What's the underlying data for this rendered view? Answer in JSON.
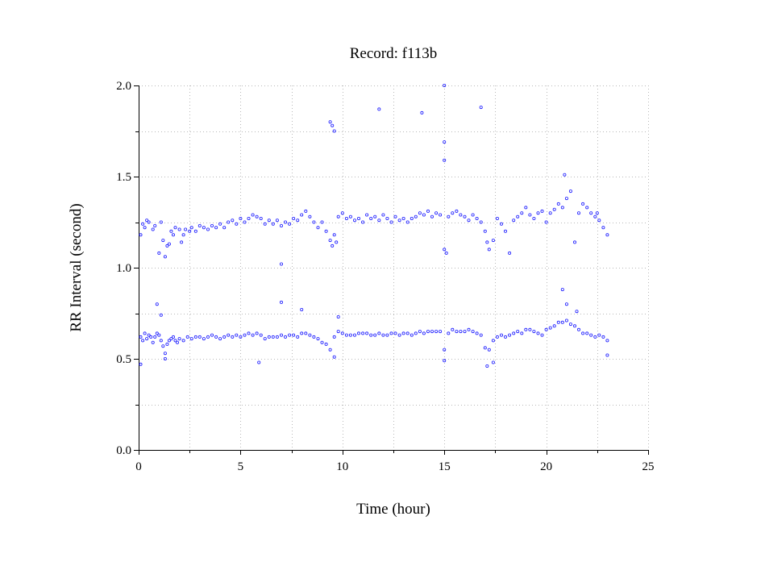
{
  "chart_data": {
    "type": "scatter",
    "title": "Record:  f113b",
    "xlabel": "Time (hour)",
    "ylabel": "RR Interval (second)",
    "xlim": [
      0,
      25
    ],
    "ylim": [
      0,
      2
    ],
    "x_ticks": [
      0,
      5,
      10,
      15,
      20,
      25
    ],
    "y_ticks": [
      0.0,
      0.5,
      1.0,
      1.5,
      2.0
    ],
    "x_tick_labels": [
      "0",
      "5",
      "10",
      "15",
      "20",
      "25"
    ],
    "y_tick_labels": [
      "0.0",
      "0.5",
      "1.0",
      "1.5",
      "2.0"
    ],
    "grid": true,
    "marker_color": "#1a1aff",
    "series": [
      {
        "points": [
          [
            0.1,
            0.62
          ],
          [
            0.2,
            0.6
          ],
          [
            0.3,
            0.64
          ],
          [
            0.4,
            0.61
          ],
          [
            0.5,
            0.63
          ],
          [
            0.6,
            0.62
          ],
          [
            0.7,
            0.59
          ],
          [
            0.8,
            0.62
          ],
          [
            0.9,
            0.64
          ],
          [
            1.0,
            0.63
          ],
          [
            1.1,
            0.6
          ],
          [
            1.2,
            0.57
          ],
          [
            1.3,
            0.53
          ],
          [
            1.4,
            0.58
          ],
          [
            1.5,
            0.6
          ],
          [
            1.6,
            0.61
          ],
          [
            1.7,
            0.62
          ],
          [
            1.8,
            0.6
          ],
          [
            1.9,
            0.59
          ],
          [
            2.0,
            0.61
          ],
          [
            2.2,
            0.6
          ],
          [
            2.4,
            0.62
          ],
          [
            2.6,
            0.61
          ],
          [
            2.8,
            0.62
          ],
          [
            3.0,
            0.62
          ],
          [
            3.2,
            0.61
          ],
          [
            3.4,
            0.62
          ],
          [
            3.6,
            0.63
          ],
          [
            3.8,
            0.62
          ],
          [
            4.0,
            0.61
          ],
          [
            4.2,
            0.62
          ],
          [
            4.4,
            0.63
          ],
          [
            4.6,
            0.62
          ],
          [
            4.8,
            0.63
          ],
          [
            5.0,
            0.62
          ],
          [
            5.2,
            0.63
          ],
          [
            5.4,
            0.64
          ],
          [
            5.6,
            0.63
          ],
          [
            5.8,
            0.64
          ],
          [
            6.0,
            0.63
          ],
          [
            6.2,
            0.61
          ],
          [
            6.4,
            0.62
          ],
          [
            6.6,
            0.62
          ],
          [
            6.8,
            0.62
          ],
          [
            7.0,
            0.63
          ],
          [
            7.2,
            0.62
          ],
          [
            7.4,
            0.63
          ],
          [
            7.6,
            0.63
          ],
          [
            7.8,
            0.62
          ],
          [
            8.0,
            0.64
          ],
          [
            8.2,
            0.64
          ],
          [
            8.4,
            0.63
          ],
          [
            8.6,
            0.62
          ],
          [
            8.8,
            0.61
          ],
          [
            9.0,
            0.59
          ],
          [
            9.2,
            0.58
          ],
          [
            9.4,
            0.55
          ],
          [
            9.6,
            0.62
          ],
          [
            9.8,
            0.65
          ],
          [
            10.0,
            0.64
          ],
          [
            10.2,
            0.63
          ],
          [
            10.4,
            0.63
          ],
          [
            10.6,
            0.63
          ],
          [
            10.8,
            0.64
          ],
          [
            11.0,
            0.64
          ],
          [
            11.2,
            0.64
          ],
          [
            11.4,
            0.63
          ],
          [
            11.6,
            0.63
          ],
          [
            11.8,
            0.64
          ],
          [
            12.0,
            0.63
          ],
          [
            12.2,
            0.63
          ],
          [
            12.4,
            0.64
          ],
          [
            12.6,
            0.64
          ],
          [
            12.8,
            0.63
          ],
          [
            13.0,
            0.64
          ],
          [
            13.2,
            0.64
          ],
          [
            13.4,
            0.63
          ],
          [
            13.6,
            0.64
          ],
          [
            13.8,
            0.65
          ],
          [
            14.0,
            0.64
          ],
          [
            14.2,
            0.65
          ],
          [
            14.4,
            0.65
          ],
          [
            14.6,
            0.65
          ],
          [
            14.8,
            0.65
          ],
          [
            15.0,
            0.55
          ],
          [
            15.2,
            0.64
          ],
          [
            15.4,
            0.66
          ],
          [
            15.6,
            0.65
          ],
          [
            15.8,
            0.65
          ],
          [
            16.0,
            0.65
          ],
          [
            16.2,
            0.66
          ],
          [
            16.4,
            0.65
          ],
          [
            16.6,
            0.64
          ],
          [
            16.8,
            0.63
          ],
          [
            17.0,
            0.56
          ],
          [
            17.2,
            0.55
          ],
          [
            17.4,
            0.6
          ],
          [
            17.6,
            0.62
          ],
          [
            17.8,
            0.63
          ],
          [
            18.0,
            0.62
          ],
          [
            18.2,
            0.63
          ],
          [
            18.4,
            0.64
          ],
          [
            18.6,
            0.65
          ],
          [
            18.8,
            0.64
          ],
          [
            19.0,
            0.66
          ],
          [
            19.2,
            0.66
          ],
          [
            19.4,
            0.65
          ],
          [
            19.6,
            0.64
          ],
          [
            19.8,
            0.63
          ],
          [
            20.0,
            0.66
          ],
          [
            20.2,
            0.67
          ],
          [
            20.4,
            0.68
          ],
          [
            20.6,
            0.7
          ],
          [
            20.8,
            0.7
          ],
          [
            21.0,
            0.71
          ],
          [
            21.2,
            0.69
          ],
          [
            21.4,
            0.68
          ],
          [
            21.6,
            0.66
          ],
          [
            21.8,
            0.64
          ],
          [
            22.0,
            0.64
          ],
          [
            22.2,
            0.63
          ],
          [
            22.4,
            0.62
          ],
          [
            22.6,
            0.63
          ],
          [
            22.8,
            0.62
          ],
          [
            23.0,
            0.6
          ],
          [
            0.1,
            0.47
          ],
          [
            1.3,
            0.5
          ],
          [
            5.9,
            0.48
          ],
          [
            9.6,
            0.51
          ],
          [
            15.0,
            0.49
          ],
          [
            17.1,
            0.46
          ],
          [
            17.4,
            0.48
          ],
          [
            23.0,
            0.52
          ],
          [
            0.9,
            0.8
          ],
          [
            1.1,
            0.74
          ],
          [
            7.0,
            0.81
          ],
          [
            8.0,
            0.77
          ],
          [
            9.8,
            0.73
          ],
          [
            20.8,
            0.88
          ],
          [
            21.0,
            0.8
          ],
          [
            21.5,
            0.76
          ],
          [
            0.1,
            1.18
          ],
          [
            0.2,
            1.24
          ],
          [
            0.3,
            1.22
          ],
          [
            0.4,
            1.26
          ],
          [
            0.5,
            1.25
          ],
          [
            0.7,
            1.21
          ],
          [
            0.8,
            1.23
          ],
          [
            1.0,
            1.08
          ],
          [
            1.1,
            1.25
          ],
          [
            1.2,
            1.15
          ],
          [
            1.3,
            1.06
          ],
          [
            1.4,
            1.12
          ],
          [
            1.5,
            1.13
          ],
          [
            1.6,
            1.2
          ],
          [
            1.7,
            1.18
          ],
          [
            1.8,
            1.22
          ],
          [
            2.0,
            1.21
          ],
          [
            2.1,
            1.14
          ],
          [
            2.2,
            1.18
          ],
          [
            2.3,
            1.21
          ],
          [
            2.5,
            1.2
          ],
          [
            2.6,
            1.22
          ],
          [
            2.8,
            1.2
          ],
          [
            3.0,
            1.23
          ],
          [
            3.2,
            1.22
          ],
          [
            3.4,
            1.21
          ],
          [
            3.6,
            1.23
          ],
          [
            3.8,
            1.22
          ],
          [
            4.0,
            1.24
          ],
          [
            4.2,
            1.22
          ],
          [
            4.4,
            1.25
          ],
          [
            4.6,
            1.26
          ],
          [
            4.8,
            1.24
          ],
          [
            5.0,
            1.27
          ],
          [
            5.2,
            1.25
          ],
          [
            5.4,
            1.27
          ],
          [
            5.6,
            1.29
          ],
          [
            5.8,
            1.28
          ],
          [
            6.0,
            1.27
          ],
          [
            6.2,
            1.24
          ],
          [
            6.4,
            1.26
          ],
          [
            6.6,
            1.24
          ],
          [
            6.8,
            1.26
          ],
          [
            7.0,
            1.23
          ],
          [
            7.2,
            1.25
          ],
          [
            7.4,
            1.24
          ],
          [
            7.6,
            1.27
          ],
          [
            7.8,
            1.26
          ],
          [
            8.0,
            1.29
          ],
          [
            8.2,
            1.31
          ],
          [
            8.4,
            1.28
          ],
          [
            8.6,
            1.25
          ],
          [
            8.8,
            1.22
          ],
          [
            9.0,
            1.25
          ],
          [
            9.2,
            1.2
          ],
          [
            9.4,
            1.15
          ],
          [
            9.5,
            1.12
          ],
          [
            9.6,
            1.18
          ],
          [
            9.7,
            1.14
          ],
          [
            9.8,
            1.28
          ],
          [
            10.0,
            1.3
          ],
          [
            10.2,
            1.27
          ],
          [
            10.4,
            1.28
          ],
          [
            10.6,
            1.26
          ],
          [
            10.8,
            1.27
          ],
          [
            11.0,
            1.25
          ],
          [
            11.2,
            1.29
          ],
          [
            11.4,
            1.27
          ],
          [
            11.6,
            1.28
          ],
          [
            11.8,
            1.26
          ],
          [
            12.0,
            1.29
          ],
          [
            12.2,
            1.27
          ],
          [
            12.4,
            1.25
          ],
          [
            12.6,
            1.28
          ],
          [
            12.8,
            1.26
          ],
          [
            13.0,
            1.27
          ],
          [
            13.2,
            1.25
          ],
          [
            13.4,
            1.27
          ],
          [
            13.6,
            1.28
          ],
          [
            13.8,
            1.3
          ],
          [
            14.0,
            1.29
          ],
          [
            14.2,
            1.31
          ],
          [
            14.4,
            1.28
          ],
          [
            14.6,
            1.3
          ],
          [
            14.8,
            1.29
          ],
          [
            15.0,
            1.1
          ],
          [
            15.1,
            1.08
          ],
          [
            15.2,
            1.28
          ],
          [
            15.4,
            1.3
          ],
          [
            15.6,
            1.31
          ],
          [
            15.8,
            1.29
          ],
          [
            16.0,
            1.28
          ],
          [
            16.2,
            1.26
          ],
          [
            16.4,
            1.29
          ],
          [
            16.6,
            1.27
          ],
          [
            16.8,
            1.25
          ],
          [
            17.0,
            1.2
          ],
          [
            17.1,
            1.14
          ],
          [
            17.2,
            1.1
          ],
          [
            17.4,
            1.15
          ],
          [
            17.6,
            1.27
          ],
          [
            17.8,
            1.24
          ],
          [
            18.0,
            1.2
          ],
          [
            18.2,
            1.08
          ],
          [
            18.4,
            1.26
          ],
          [
            18.6,
            1.28
          ],
          [
            18.8,
            1.3
          ],
          [
            19.0,
            1.33
          ],
          [
            19.2,
            1.29
          ],
          [
            19.4,
            1.27
          ],
          [
            19.6,
            1.3
          ],
          [
            19.8,
            1.31
          ],
          [
            20.0,
            1.25
          ],
          [
            20.2,
            1.3
          ],
          [
            20.4,
            1.32
          ],
          [
            20.6,
            1.35
          ],
          [
            20.8,
            1.33
          ],
          [
            21.0,
            1.38
          ],
          [
            21.2,
            1.42
          ],
          [
            21.4,
            1.14
          ],
          [
            21.6,
            1.3
          ],
          [
            21.8,
            1.35
          ],
          [
            22.0,
            1.33
          ],
          [
            22.2,
            1.3
          ],
          [
            22.4,
            1.28
          ],
          [
            22.6,
            1.26
          ],
          [
            22.8,
            1.22
          ],
          [
            23.0,
            1.18
          ],
          [
            20.9,
            1.51
          ],
          [
            22.5,
            1.3
          ],
          [
            9.4,
            1.8
          ],
          [
            9.5,
            1.78
          ],
          [
            9.6,
            1.75
          ],
          [
            11.8,
            1.87
          ],
          [
            13.9,
            1.85
          ],
          [
            15.0,
            2.0
          ],
          [
            15.0,
            1.69
          ],
          [
            15.0,
            1.59
          ],
          [
            16.8,
            1.88
          ],
          [
            7.0,
            1.02
          ]
        ]
      }
    ]
  }
}
